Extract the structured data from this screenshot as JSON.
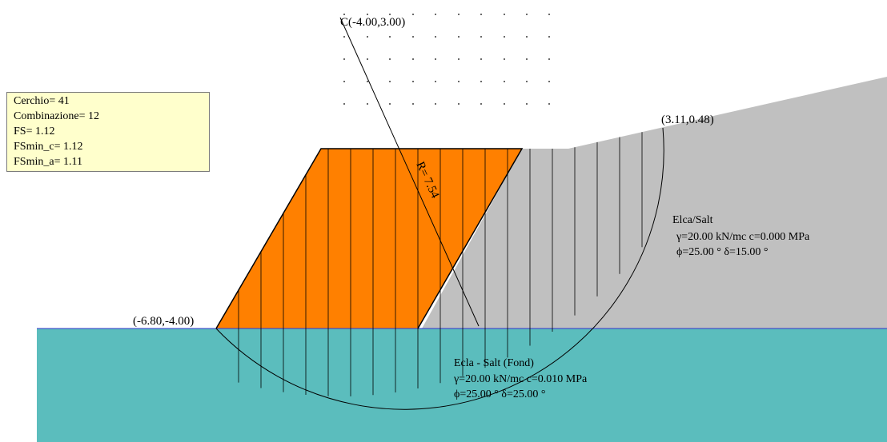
{
  "info_box": {
    "lines": [
      "Cerchio= 41",
      "Combinazione= 12",
      "FS= 1.12",
      "FSmin_c= 1.12",
      "FSmin_a= 1.11"
    ]
  },
  "labels": {
    "center": "C(-4.00,3.00)",
    "radius": "R= 7.54",
    "left_point": "(-6.80,-4.00)",
    "right_point": "(3.11,0.48)"
  },
  "layers": [
    {
      "name": "Elca/Salt",
      "props_line1": "γ=20.00 kN/mc c=0.000 MPa",
      "props_line2": "ϕ=25.00 °  δ=15.00 °",
      "color": "#c0c0c0"
    },
    {
      "name": "Ecla - Salt (Fond)",
      "props_line1": "γ=20.00 kN/mc c=0.010 MPa",
      "props_line2": "ϕ=25.00 °  δ=25.00 °",
      "color": "#5bbdbd"
    }
  ],
  "embankment": {
    "color": "#ff8000"
  },
  "colors": {
    "ground_line": "#3333cc",
    "info_bg": "#ffffcc"
  }
}
